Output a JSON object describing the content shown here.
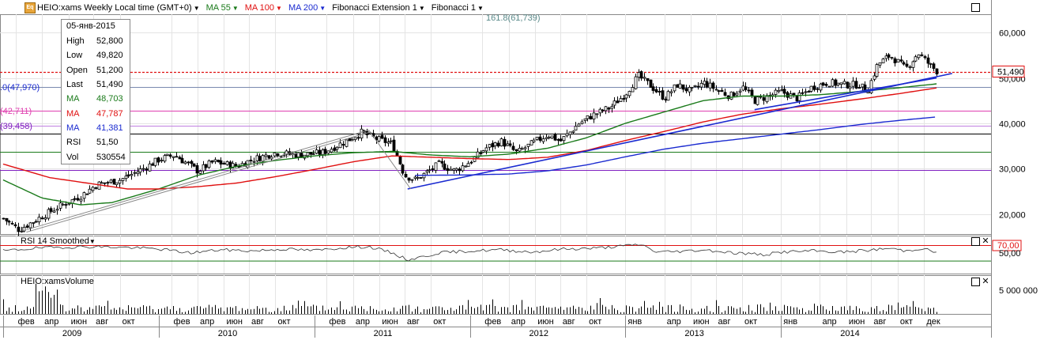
{
  "header": {
    "instrument": "HEIO:xams Weekly Local time (GMT+0)",
    "ma55": "MA 55",
    "ma100": "MA 100",
    "ma200": "MA 200",
    "fib_ext": "Fibonacci Extension 1",
    "fib": "Fibonacci 1",
    "fib_ext_label": "161.8(61,739)",
    "icon": "instrument-logo-icon"
  },
  "info_box": {
    "date": "05-янв-2015",
    "rows": [
      {
        "k": "High",
        "v": "52,800",
        "color": "#000000"
      },
      {
        "k": "Low",
        "v": "49,820",
        "color": "#000000"
      },
      {
        "k": "Open",
        "v": "51,200",
        "color": "#000000"
      },
      {
        "k": "Last",
        "v": "51,490",
        "color": "#000000"
      },
      {
        "k": "MA",
        "v": "48,703",
        "color": "#1a7a1a"
      },
      {
        "k": "MA",
        "v": "47,787",
        "color": "#e01010"
      },
      {
        "k": "MA",
        "v": "41,381",
        "color": "#1a2ad0"
      },
      {
        "k": "RSI",
        "v": "51,50",
        "color": "#000000"
      },
      {
        "k": "Vol",
        "v": "530554",
        "color": "#000000"
      }
    ]
  },
  "fib_levels": [
    {
      "label": ".0(47,970)",
      "value": 47.97
    },
    {
      "label": "(42,711)",
      "value": 42.711
    },
    {
      "label": "(39,458)",
      "value": 39.458
    }
  ],
  "last_price_label": "51,490",
  "rsi_panel": {
    "title": "RSI 14 Smoothed",
    "overbought_label": "70,00",
    "mid_label": "50,00",
    "level_high": 70,
    "level_low": 30
  },
  "volume_panel": {
    "title": "HEIO:xamsVolume",
    "axis_label": "5 000 000"
  },
  "colors": {
    "ma55": "#1a7a1a",
    "ma100": "#e01010",
    "ma200": "#1a2ad0",
    "trend": "#1a2ad0",
    "fib_red": "#e01010",
    "fib_pink": "#e040b0",
    "fib_purple": "#8020c0"
  },
  "chart_data": {
    "type": "line",
    "subtype": "candlestick",
    "title": "HEIO:xams Weekly Local time (GMT+0)",
    "x_start": "2009-01",
    "x_end": "2015-01",
    "ylim": [
      15,
      65
    ],
    "y_ticks": [
      "60,000",
      "50,000",
      "40,000",
      "30,000",
      "20,000"
    ],
    "y_tick_values": [
      60,
      50,
      40,
      30,
      20
    ],
    "x_month_labels": [
      "фев",
      "апр",
      "июн",
      "авг",
      "окт",
      "фев",
      "апр",
      "июн",
      "авг",
      "окт",
      "фев",
      "апр",
      "июн",
      "авг",
      "окт",
      "фев",
      "апр",
      "июн",
      "авг",
      "окт",
      "янв",
      "апр",
      "июн",
      "авг",
      "окт",
      "янв",
      "апр",
      "июн",
      "авг",
      "окт",
      "дек"
    ],
    "x_month_positions": [
      2009.08,
      2009.25,
      2009.42,
      2009.58,
      2009.75,
      2010.08,
      2010.25,
      2010.42,
      2010.58,
      2010.75,
      2011.08,
      2011.25,
      2011.42,
      2011.58,
      2011.75,
      2012.08,
      2012.25,
      2012.42,
      2012.58,
      2012.75,
      2013.0,
      2013.25,
      2013.42,
      2013.58,
      2013.75,
      2014.0,
      2014.25,
      2014.42,
      2014.58,
      2014.75,
      2014.92
    ],
    "x_year_labels": [
      "2009",
      "2010",
      "2011",
      "2012",
      "2013",
      "2014"
    ],
    "x_year_positions": [
      2009.0,
      2010.0,
      2011.0,
      2012.0,
      2013.0,
      2014.0
    ],
    "price_keypoints": [
      [
        2009.0,
        19.0
      ],
      [
        2009.1,
        16.5
      ],
      [
        2009.2,
        18.5
      ],
      [
        2009.35,
        21.5
      ],
      [
        2009.5,
        24.0
      ],
      [
        2009.6,
        26.5
      ],
      [
        2009.75,
        27.5
      ],
      [
        2009.9,
        30.0
      ],
      [
        2010.0,
        32.0
      ],
      [
        2010.1,
        33.0
      ],
      [
        2010.25,
        29.5
      ],
      [
        2010.35,
        31.5
      ],
      [
        2010.5,
        30.5
      ],
      [
        2010.6,
        32.0
      ],
      [
        2010.75,
        33.5
      ],
      [
        2010.9,
        33.0
      ],
      [
        2011.05,
        33.5
      ],
      [
        2011.2,
        36.0
      ],
      [
        2011.3,
        38.0
      ],
      [
        2011.4,
        36.5
      ],
      [
        2011.5,
        35.5
      ],
      [
        2011.58,
        28.5
      ],
      [
        2011.65,
        27.5
      ],
      [
        2011.8,
        31.0
      ],
      [
        2011.9,
        29.5
      ],
      [
        2012.0,
        31.5
      ],
      [
        2012.1,
        34.5
      ],
      [
        2012.2,
        36.0
      ],
      [
        2012.3,
        33.5
      ],
      [
        2012.42,
        36.0
      ],
      [
        2012.5,
        37.5
      ],
      [
        2012.58,
        36.0
      ],
      [
        2012.7,
        40.0
      ],
      [
        2012.8,
        42.0
      ],
      [
        2012.9,
        43.5
      ],
      [
        2013.0,
        46.5
      ],
      [
        2013.08,
        50.5
      ],
      [
        2013.17,
        48.0
      ],
      [
        2013.25,
        45.5
      ],
      [
        2013.33,
        48.5
      ],
      [
        2013.42,
        47.0
      ],
      [
        2013.5,
        49.0
      ],
      [
        2013.58,
        47.5
      ],
      [
        2013.67,
        46.0
      ],
      [
        2013.75,
        48.0
      ],
      [
        2013.83,
        45.0
      ],
      [
        2013.92,
        46.0
      ],
      [
        2014.0,
        47.0
      ],
      [
        2014.1,
        45.5
      ],
      [
        2014.2,
        48.0
      ],
      [
        2014.3,
        49.0
      ],
      [
        2014.4,
        48.5
      ],
      [
        2014.5,
        48.5
      ],
      [
        2014.55,
        47.0
      ],
      [
        2014.62,
        53.0
      ],
      [
        2014.7,
        55.0
      ],
      [
        2014.8,
        52.0
      ],
      [
        2014.88,
        55.5
      ],
      [
        2014.95,
        53.0
      ],
      [
        2015.0,
        51.5
      ]
    ],
    "series": [
      {
        "name": "MA 55",
        "color": "#1a7a1a",
        "points": [
          [
            2009.0,
            27.5
          ],
          [
            2009.25,
            23.5
          ],
          [
            2009.5,
            22.0
          ],
          [
            2009.7,
            22.5
          ],
          [
            2010.0,
            25.5
          ],
          [
            2010.25,
            28.5
          ],
          [
            2010.5,
            30.5
          ],
          [
            2010.75,
            31.8
          ],
          [
            2011.0,
            32.8
          ],
          [
            2011.25,
            33.5
          ],
          [
            2011.5,
            33.8
          ],
          [
            2011.75,
            33.0
          ],
          [
            2012.0,
            32.6
          ],
          [
            2012.25,
            33.2
          ],
          [
            2012.5,
            34.5
          ],
          [
            2012.75,
            36.8
          ],
          [
            2013.0,
            40.0
          ],
          [
            2013.25,
            42.5
          ],
          [
            2013.5,
            45.0
          ],
          [
            2013.75,
            46.0
          ],
          [
            2014.0,
            46.0
          ],
          [
            2014.25,
            46.3
          ],
          [
            2014.5,
            47.0
          ],
          [
            2014.75,
            47.8
          ],
          [
            2015.0,
            48.7
          ]
        ]
      },
      {
        "name": "MA 100",
        "color": "#e01010",
        "points": [
          [
            2009.0,
            31.0
          ],
          [
            2009.3,
            28.0
          ],
          [
            2009.6,
            26.5
          ],
          [
            2009.8,
            25.5
          ],
          [
            2010.0,
            25.5
          ],
          [
            2010.25,
            26.0
          ],
          [
            2010.5,
            26.8
          ],
          [
            2010.75,
            28.2
          ],
          [
            2011.0,
            29.8
          ],
          [
            2011.25,
            31.5
          ],
          [
            2011.5,
            32.8
          ],
          [
            2011.75,
            32.5
          ],
          [
            2012.0,
            32.2
          ],
          [
            2012.25,
            32.0
          ],
          [
            2012.5,
            32.5
          ],
          [
            2012.75,
            34.0
          ],
          [
            2013.0,
            36.2
          ],
          [
            2013.25,
            38.2
          ],
          [
            2013.5,
            40.3
          ],
          [
            2013.75,
            42.0
          ],
          [
            2014.0,
            43.2
          ],
          [
            2014.25,
            44.2
          ],
          [
            2014.5,
            45.3
          ],
          [
            2014.75,
            46.5
          ],
          [
            2015.0,
            47.8
          ]
        ]
      },
      {
        "name": "MA 200",
        "color": "#1a2ad0",
        "points": [
          [
            2011.65,
            28.5
          ],
          [
            2012.0,
            28.6
          ],
          [
            2012.25,
            28.8
          ],
          [
            2012.5,
            29.5
          ],
          [
            2012.75,
            30.8
          ],
          [
            2013.0,
            32.6
          ],
          [
            2013.25,
            34.3
          ],
          [
            2013.5,
            35.6
          ],
          [
            2013.75,
            36.6
          ],
          [
            2014.0,
            37.6
          ],
          [
            2014.25,
            38.6
          ],
          [
            2014.5,
            39.7
          ],
          [
            2014.75,
            40.6
          ],
          [
            2015.0,
            41.4
          ]
        ]
      }
    ],
    "trendlines": [
      {
        "from": [
          2011.6,
          25.5
        ],
        "to": [
          2015.1,
          51.0
        ],
        "color": "#1a2ad0"
      },
      {
        "from": [
          2013.83,
          43.0
        ],
        "to": [
          2015.0,
          50.0
        ],
        "color": "#1a2ad0"
      }
    ],
    "horizontal_levels": [
      {
        "value": 51.3,
        "color": "#e01010",
        "dashed": true
      },
      {
        "value": 47.97,
        "color": "#7a8ab0",
        "dashed": false
      },
      {
        "value": 42.711,
        "color": "#e040b0",
        "dashed": false
      },
      {
        "value": 39.458,
        "color": "#c080e0",
        "dashed": false
      },
      {
        "value": 37.7,
        "color": "#000000",
        "dashed": false
      },
      {
        "value": 33.7,
        "color": "#1a7a1a",
        "dashed": false
      },
      {
        "value": 29.6,
        "color": "#8020c0",
        "dashed": false
      }
    ],
    "rsi_keypoints": [
      [
        2009.0,
        55
      ],
      [
        2009.2,
        62
      ],
      [
        2009.4,
        65
      ],
      [
        2009.6,
        66
      ],
      [
        2009.8,
        64
      ],
      [
        2010.0,
        60
      ],
      [
        2010.2,
        50
      ],
      [
        2010.4,
        58
      ],
      [
        2010.6,
        55
      ],
      [
        2010.8,
        60
      ],
      [
        2011.0,
        56
      ],
      [
        2011.2,
        64
      ],
      [
        2011.35,
        66
      ],
      [
        2011.5,
        50
      ],
      [
        2011.6,
        32
      ],
      [
        2011.7,
        40
      ],
      [
        2011.8,
        50
      ],
      [
        2012.0,
        55
      ],
      [
        2012.2,
        58
      ],
      [
        2012.4,
        52
      ],
      [
        2012.6,
        60
      ],
      [
        2012.8,
        62
      ],
      [
        2013.0,
        68
      ],
      [
        2013.1,
        72
      ],
      [
        2013.2,
        52
      ],
      [
        2013.4,
        55
      ],
      [
        2013.5,
        58
      ],
      [
        2013.7,
        50
      ],
      [
        2013.9,
        45
      ],
      [
        2014.0,
        52
      ],
      [
        2014.2,
        55
      ],
      [
        2014.4,
        52
      ],
      [
        2014.6,
        58
      ],
      [
        2014.7,
        62
      ],
      [
        2014.8,
        55
      ],
      [
        2014.9,
        62
      ],
      [
        2015.0,
        51.5
      ]
    ],
    "volume_axis_value": 5000000,
    "last_volume": 530554
  }
}
